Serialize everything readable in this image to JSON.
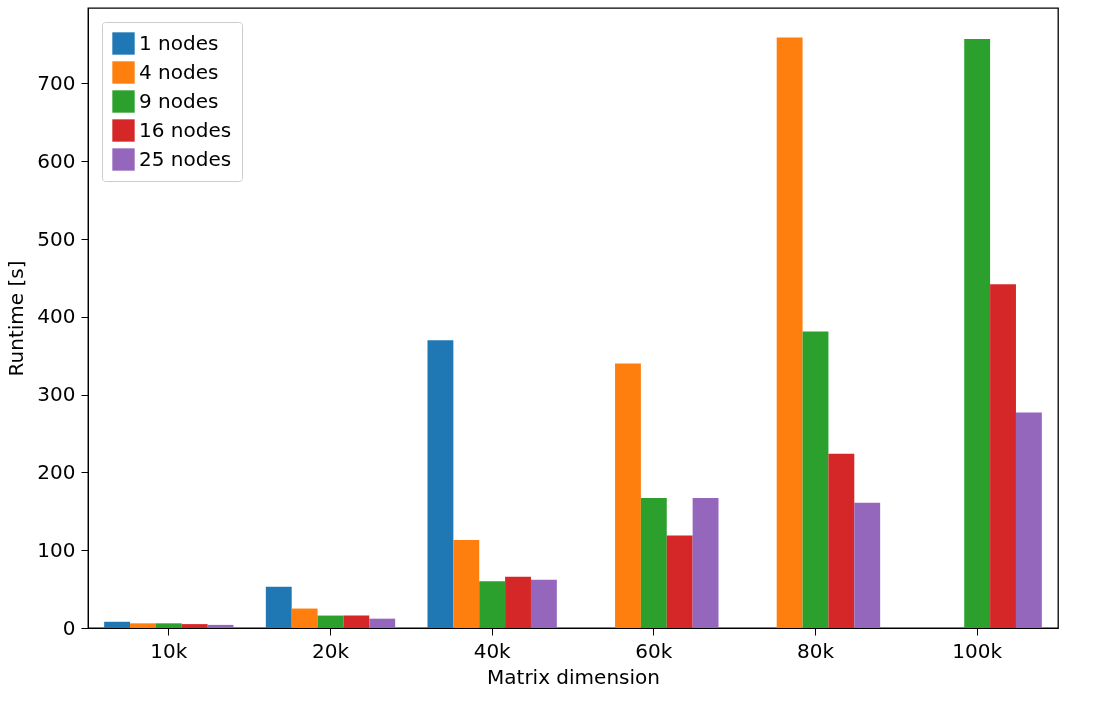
{
  "chart_data": {
    "type": "bar",
    "xlabel": "Matrix dimension",
    "ylabel": "Runtime [s]",
    "categories": [
      "10k",
      "20k",
      "40k",
      "60k",
      "80k",
      "100k"
    ],
    "series": [
      {
        "name": "1 nodes",
        "color": "#1f77b4",
        "values": [
          8,
          53,
          370,
          null,
          null,
          null
        ]
      },
      {
        "name": "4 nodes",
        "color": "#ff7f0e",
        "values": [
          6,
          25,
          113,
          340,
          759,
          null
        ]
      },
      {
        "name": "9 nodes",
        "color": "#2ca02c",
        "values": [
          6,
          16,
          60,
          167,
          381,
          757
        ]
      },
      {
        "name": "16 nodes",
        "color": "#d62728",
        "values": [
          5,
          16,
          66,
          119,
          224,
          442
        ]
      },
      {
        "name": "25 nodes",
        "color": "#9467bd",
        "values": [
          4,
          12,
          62,
          167,
          161,
          277
        ]
      }
    ],
    "ylim": [
      0,
      797
    ],
    "yticks": [
      0,
      100,
      200,
      300,
      400,
      500,
      600,
      700
    ],
    "grid": false,
    "legend": "top left"
  }
}
